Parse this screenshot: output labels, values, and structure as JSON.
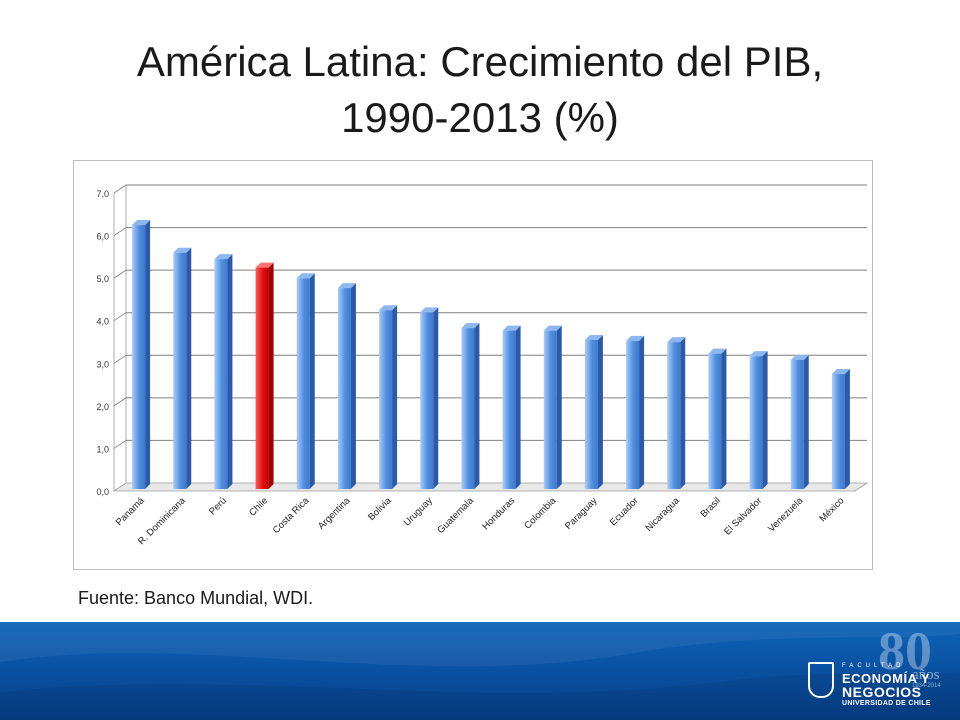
{
  "title": {
    "line1": "América Latina: Crecimiento del PIB,",
    "line2": "1990-2013 (%)"
  },
  "source": "Fuente: Banco Mundial, WDI.",
  "chart_data": {
    "type": "bar",
    "title": "",
    "xlabel": "",
    "ylabel": "",
    "ylim": [
      0,
      7
    ],
    "yticks": [
      "0,0",
      "1,0",
      "2,0",
      "3,0",
      "4,0",
      "5,0",
      "6,0",
      "7,0"
    ],
    "grid": true,
    "legend": "none",
    "categories": [
      "Panamá",
      "R. Dominicana",
      "Perú",
      "Chile",
      "Costa Rica",
      "Argentina",
      "Bolivia",
      "Uruguay",
      "Guatemala",
      "Honduras",
      "Colombia",
      "Paraguay",
      "Ecuador",
      "Nicaragua",
      "Brasil",
      "El Salvador",
      "Venezuela",
      "México"
    ],
    "values": [
      6.2,
      5.55,
      5.4,
      5.2,
      4.95,
      4.72,
      4.2,
      4.15,
      3.78,
      3.72,
      3.72,
      3.5,
      3.48,
      3.45,
      3.18,
      3.12,
      3.03,
      2.7
    ],
    "highlight": "Chile",
    "colors": {
      "bar": "#4f8fe0",
      "bar_dark": "#2a5aa8",
      "highlight": "#e01010",
      "highlight_dark": "#a00000",
      "grid": "#7f7f7f"
    }
  },
  "footer": {
    "logo_facultad": "FACULTAD",
    "logo_line1": "ECONOMÍA Y",
    "logo_line2": "NEGOCIOS",
    "logo_line3": "UNIVERSIDAD DE CHILE",
    "anniversary": "80",
    "anniversary_sub": "años",
    "anniversary_years": "1934-2014"
  }
}
